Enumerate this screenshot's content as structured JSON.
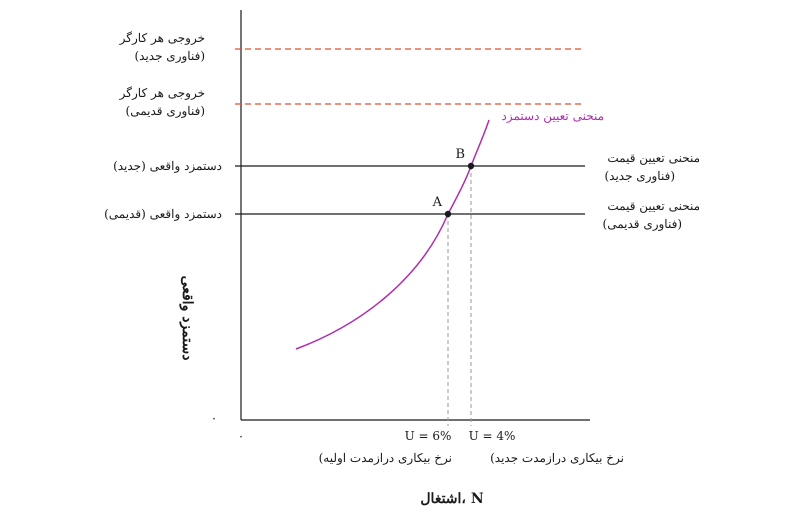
{
  "diagram": {
    "left_labels": {
      "output_new_line1": "خروجی هر کارگر",
      "output_new_line2": "(فناوری جدید)",
      "output_old_line1": "خروجی هر کارگر",
      "output_old_line2": "(فناوری قدیمی)",
      "wage_new": "دستمزد واقعی (جدید)",
      "wage_old": "دستمزد واقعی (قدیمی)"
    },
    "right_labels": {
      "price_new_line1": "منحنی تعیین قیمت",
      "price_new_line2": "(فناوری جدید)",
      "price_old_line1": "منحنی تعیین قیمت",
      "price_old_line2": "(فناوری قدیمی)"
    },
    "curve_label": "منحنی تعیین دستمزد",
    "points": {
      "a": "A",
      "b": "B"
    },
    "x_ticks": {
      "u6": "U = 6%",
      "u4": "U = 4%",
      "u6_desc": "(نرخ بیکاری درازمدت اولیه",
      "u4_desc": "(نرخ بیکاری درازمدت جدید"
    },
    "origin_y": "۰",
    "origin_x": "۰",
    "y_axis_label": "دستمزد واقعی",
    "x_axis_label": "اشتغال، N",
    "colors": {
      "axis": "#1a1a1a",
      "curve": "#b02cb0",
      "dashed_output": "#e0502a",
      "dashed_guide": "#9a9a9a"
    }
  }
}
